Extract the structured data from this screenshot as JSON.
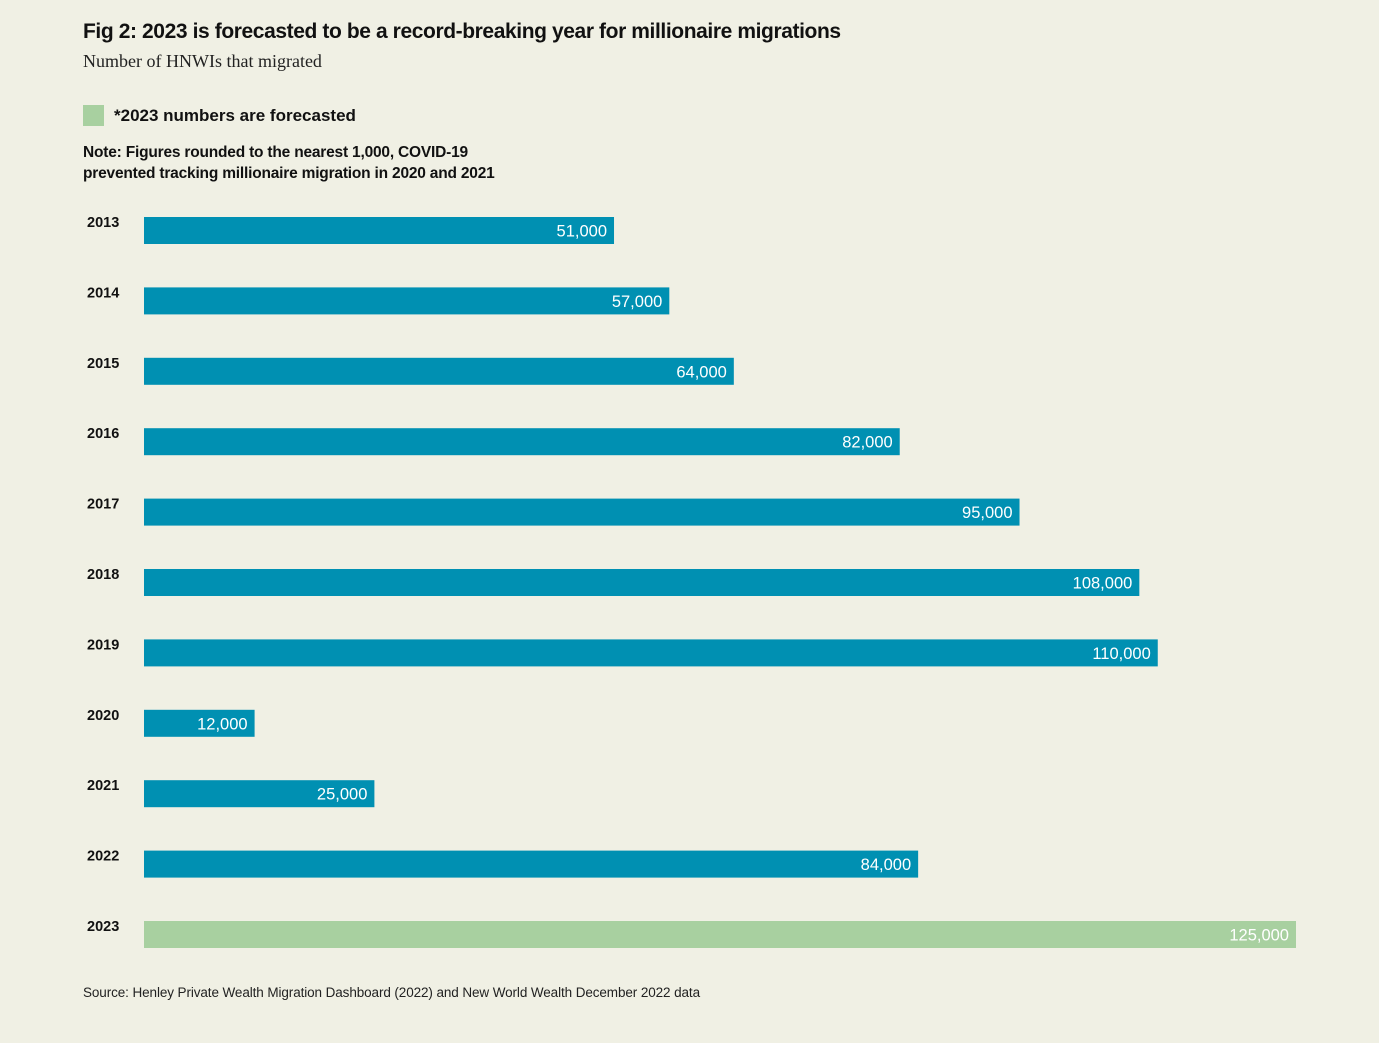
{
  "header": {
    "title": "Fig 2: 2023 is forecasted to be a record-breaking year for millionaire migrations",
    "subtitle": "Number of HNWIs that migrated"
  },
  "legend": {
    "label": "*2023 numbers are forecasted",
    "color": "#A8D0A0"
  },
  "note": {
    "line1": "Note: Figures rounded to the nearest 1,000, COVID-19",
    "line2": "prevented tracking millionaire migration in 2020 and 2021"
  },
  "source": "Source: Henley Private Wealth Migration Dashboard (2022) and New World Wealth December 2022 data",
  "colors": {
    "background": "#F0F0E4",
    "actual": "#0090B2",
    "forecast": "#A8D0A0",
    "bar_label": "#FFFFFF"
  },
  "chart_data": {
    "type": "bar",
    "orientation": "horizontal",
    "title": "Fig 2: 2023 is forecasted to be a record-breaking year for millionaire migrations",
    "subtitle": "Number of HNWIs that migrated",
    "xlabel": "",
    "ylabel": "",
    "categories": [
      "2013",
      "2014",
      "2015",
      "2016",
      "2017",
      "2018",
      "2019",
      "2020",
      "2021",
      "2022",
      "2023"
    ],
    "values": [
      51000,
      57000,
      64000,
      82000,
      95000,
      108000,
      110000,
      12000,
      25000,
      84000,
      125000
    ],
    "value_labels": [
      "51,000",
      "57,000",
      "64,000",
      "82,000",
      "95,000",
      "108,000",
      "110,000",
      "12,000",
      "25,000",
      "84,000",
      "125,000"
    ],
    "forecast": [
      false,
      false,
      false,
      false,
      false,
      false,
      false,
      false,
      false,
      false,
      true
    ],
    "xlim": [
      0,
      125000
    ],
    "grid": false,
    "legend": {
      "entries": [
        "*2023 numbers are forecasted"
      ],
      "placement": "top-left"
    }
  }
}
